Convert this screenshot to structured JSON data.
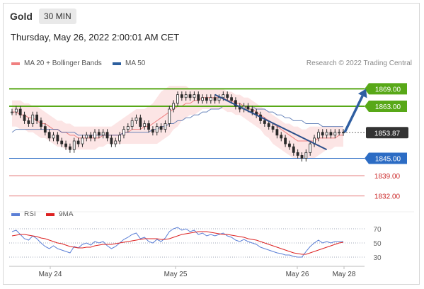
{
  "header": {
    "symbol": "Gold",
    "timeframe": "30 MIN",
    "datetime": "Thursday, May 26, 2022 2:00:01 AM CET"
  },
  "legend": {
    "ma_bb": {
      "label": "MA 20 + Bollinger Bands",
      "color": "#f08080"
    },
    "ma50": {
      "label": "MA 50",
      "color": "#2c5f9e"
    },
    "rsi": {
      "label": "RSI",
      "color": "#5b7fd6"
    },
    "ma9": {
      "label": "9MA",
      "color": "#dd2222"
    }
  },
  "credit": "Research © 2022 Trading Central",
  "colors": {
    "resistance": "#58a818",
    "pivot": "#2c6cc4",
    "support": "#e57c7c",
    "last": "#333333",
    "candle": "#2a2a2a"
  },
  "chart_data": [
    {
      "type": "candlestick",
      "title": "",
      "xlabel": "",
      "ylabel": "",
      "x_ticks": [
        "May 24",
        "May 25",
        "May 26",
        "May 28"
      ],
      "ylim": [
        1828,
        1874
      ],
      "levels": [
        {
          "value": 1869.0,
          "label": "1869.00",
          "kind": "resistance"
        },
        {
          "value": 1863.0,
          "label": "1863.00",
          "kind": "resistance"
        },
        {
          "value": 1853.87,
          "label": "1853.87",
          "kind": "last"
        },
        {
          "value": 1845.0,
          "label": "1845.00",
          "kind": "pivot"
        },
        {
          "value": 1839.0,
          "label": "1839.00",
          "kind": "support"
        },
        {
          "value": 1832.0,
          "label": "1832.00",
          "kind": "support"
        }
      ],
      "close": [
        1861,
        1862,
        1860,
        1858,
        1857,
        1860,
        1858,
        1856,
        1854,
        1852,
        1853,
        1851,
        1850,
        1849,
        1848,
        1851,
        1850,
        1852,
        1853,
        1852,
        1854,
        1853,
        1854,
        1852,
        1850,
        1851,
        1853,
        1855,
        1856,
        1858,
        1859,
        1856,
        1857,
        1855,
        1854,
        1856,
        1855,
        1857,
        1862,
        1864,
        1867,
        1866,
        1867,
        1866,
        1867,
        1865,
        1866,
        1865,
        1866,
        1865,
        1866,
        1867,
        1866,
        1865,
        1863,
        1862,
        1863,
        1862,
        1861,
        1860,
        1858,
        1857,
        1856,
        1855,
        1853,
        1852,
        1850,
        1849,
        1847,
        1846,
        1845,
        1847,
        1850,
        1852,
        1854,
        1853,
        1854,
        1853,
        1854,
        1854,
        1853.87
      ],
      "ma20_band_upper": [
        1865,
        1865,
        1865,
        1864,
        1864,
        1863,
        1863,
        1862,
        1861,
        1860,
        1859,
        1858,
        1858,
        1857,
        1857,
        1856,
        1856,
        1856,
        1856,
        1856,
        1856,
        1856,
        1856,
        1856,
        1856,
        1857,
        1858,
        1859,
        1860,
        1861,
        1862,
        1862,
        1862,
        1863,
        1864,
        1866,
        1868,
        1869,
        1870,
        1870,
        1870,
        1870,
        1870,
        1869,
        1869,
        1869,
        1869,
        1869,
        1869,
        1869,
        1869,
        1869,
        1868,
        1868,
        1867,
        1867,
        1866,
        1866,
        1865,
        1864,
        1863,
        1862,
        1861,
        1860,
        1859,
        1858,
        1857,
        1857,
        1856,
        1856,
        1855,
        1855,
        1856,
        1856,
        1856,
        1856,
        1856,
        1856,
        1856,
        1856,
        1856
      ],
      "ma20": [
        1861,
        1861,
        1860,
        1860,
        1859,
        1859,
        1858,
        1857,
        1857,
        1856,
        1855,
        1855,
        1854,
        1854,
        1853,
        1853,
        1852,
        1852,
        1852,
        1852,
        1852,
        1852,
        1853,
        1853,
        1853,
        1853,
        1853,
        1854,
        1854,
        1855,
        1855,
        1855,
        1856,
        1856,
        1857,
        1858,
        1859,
        1860,
        1861,
        1862,
        1863,
        1863,
        1864,
        1864,
        1865,
        1865,
        1866,
        1866,
        1866,
        1866,
        1866,
        1866,
        1865,
        1865,
        1864,
        1864,
        1863,
        1862,
        1862,
        1861,
        1860,
        1859,
        1858,
        1857,
        1856,
        1855,
        1854,
        1853,
        1852,
        1851,
        1851,
        1851,
        1851,
        1851,
        1852,
        1852,
        1852,
        1852,
        1852,
        1853,
        1853
      ],
      "ma20_band_lower": [
        1856,
        1856,
        1855,
        1855,
        1854,
        1854,
        1853,
        1852,
        1852,
        1851,
        1850,
        1849,
        1849,
        1848,
        1848,
        1848,
        1848,
        1848,
        1848,
        1848,
        1848,
        1849,
        1849,
        1850,
        1850,
        1850,
        1850,
        1850,
        1850,
        1850,
        1850,
        1850,
        1850,
        1850,
        1850,
        1850,
        1851,
        1852,
        1853,
        1855,
        1856,
        1858,
        1859,
        1860,
        1860,
        1861,
        1862,
        1862,
        1862,
        1862,
        1862,
        1862,
        1861,
        1861,
        1860,
        1860,
        1859,
        1858,
        1857,
        1856,
        1855,
        1853,
        1852,
        1850,
        1849,
        1848,
        1847,
        1846,
        1845,
        1845,
        1845,
        1845,
        1845,
        1845,
        1846,
        1847,
        1848,
        1848,
        1849,
        1849,
        1849
      ],
      "ma50": [
        1854,
        1855,
        1855,
        1855,
        1855,
        1855,
        1855,
        1855,
        1855,
        1855,
        1855,
        1855,
        1854,
        1854,
        1854,
        1854,
        1853,
        1853,
        1853,
        1853,
        1853,
        1853,
        1853,
        1853,
        1853,
        1853,
        1853,
        1854,
        1854,
        1854,
        1854,
        1854,
        1854,
        1854,
        1855,
        1855,
        1856,
        1856,
        1857,
        1857,
        1858,
        1858,
        1859,
        1859,
        1860,
        1860,
        1861,
        1861,
        1862,
        1862,
        1862,
        1863,
        1863,
        1863,
        1863,
        1863,
        1863,
        1863,
        1863,
        1862,
        1862,
        1862,
        1861,
        1861,
        1860,
        1860,
        1859,
        1859,
        1858,
        1858,
        1858,
        1857,
        1857,
        1857,
        1857,
        1856,
        1856,
        1856,
        1856,
        1856,
        1856
      ],
      "trendline": {
        "from": {
          "x_index": 49,
          "y": 1867
        },
        "to": {
          "x_index": 76,
          "y": 1848
        }
      },
      "arrow": {
        "from": {
          "x_index": 80,
          "y": 1854
        },
        "to_x": "May 28",
        "to_y": 1869
      }
    },
    {
      "type": "line",
      "title": "",
      "xlabel": "",
      "ylabel": "",
      "y_ticks": [
        70,
        50,
        30
      ],
      "ylim": [
        20,
        80
      ],
      "series": [
        {
          "name": "RSI",
          "values": [
            66,
            68,
            62,
            56,
            54,
            60,
            56,
            50,
            45,
            42,
            46,
            42,
            40,
            38,
            36,
            45,
            43,
            48,
            50,
            47,
            52,
            50,
            52,
            46,
            42,
            45,
            50,
            55,
            58,
            62,
            64,
            56,
            58,
            52,
            50,
            55,
            52,
            57,
            66,
            70,
            72,
            68,
            70,
            66,
            68,
            62,
            64,
            60,
            62,
            60,
            62,
            64,
            60,
            58,
            54,
            52,
            55,
            52,
            50,
            48,
            44,
            42,
            40,
            38,
            36,
            35,
            33,
            33,
            31,
            30,
            30,
            38,
            45,
            50,
            54,
            50,
            52,
            50,
            52,
            52,
            52
          ]
        },
        {
          "name": "9MA",
          "values": [
            60,
            61,
            62,
            62,
            61,
            60,
            59,
            57,
            56,
            54,
            52,
            50,
            49,
            47,
            45,
            44,
            43,
            43,
            44,
            44,
            46,
            47,
            48,
            48,
            48,
            49,
            50,
            51,
            52,
            53,
            54,
            55,
            56,
            56,
            56,
            56,
            55,
            55,
            56,
            58,
            60,
            62,
            63,
            64,
            65,
            66,
            66,
            66,
            65,
            64,
            63,
            62,
            62,
            61,
            60,
            59,
            58,
            56,
            55,
            54,
            52,
            50,
            48,
            46,
            44,
            42,
            40,
            38,
            36,
            35,
            34,
            34,
            36,
            38,
            40,
            42,
            44,
            46,
            48,
            50,
            51
          ]
        }
      ]
    }
  ]
}
